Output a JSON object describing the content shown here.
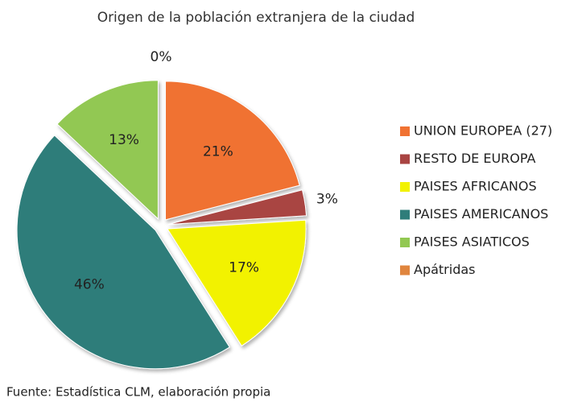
{
  "chart_data": {
    "type": "pie",
    "title": "Origen de la población extranjera de la ciudad",
    "categories": [
      "UNION EUROPEA (27)",
      "RESTO DE EUROPA",
      "PAISES AFRICANOS",
      "PAISES AMERICANOS",
      "PAISES ASIATICOS",
      "Apátridas"
    ],
    "values": [
      21,
      3,
      17,
      46,
      13,
      0
    ],
    "value_labels": [
      "21%",
      "3%",
      "17%",
      "46%",
      "13%",
      "0%"
    ],
    "colors": [
      "#f07232",
      "#a94442",
      "#f2f200",
      "#2f7d7a",
      "#92c852",
      "#e0853e"
    ],
    "legend": "right",
    "source": "Fuente: Estadística CLM, elaboración propia"
  }
}
